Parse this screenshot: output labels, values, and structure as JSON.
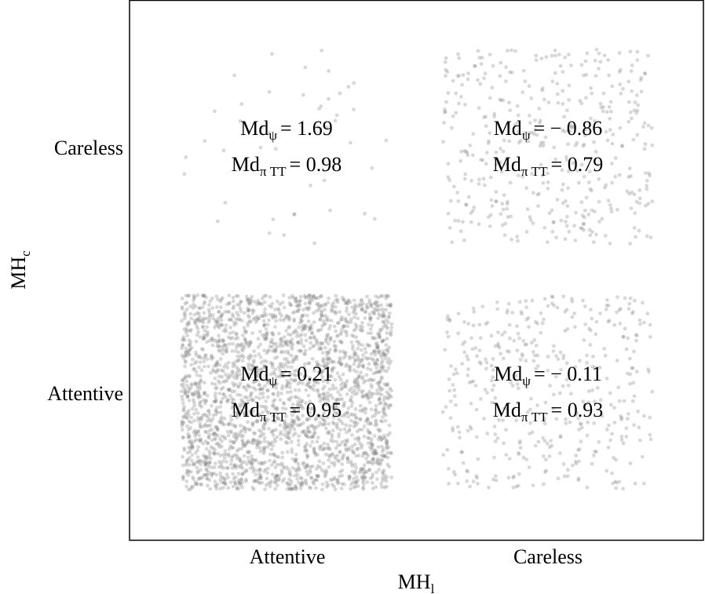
{
  "chart_data": {
    "type": "scatter",
    "subtype": "jittered-categorical",
    "xlabel": {
      "base": "MH",
      "sub": "l"
    },
    "ylabel": {
      "base": "MH",
      "sub": "c"
    },
    "x_categories": [
      "Attentive",
      "Careless"
    ],
    "y_categories": [
      "Attentive",
      "Careless"
    ],
    "point_color": "#7f7f7f",
    "grid": false,
    "cells": [
      {
        "x": "Attentive",
        "y": "Careless",
        "n_points_approx": 45,
        "stat1": {
          "base": "Md",
          "sub": "ψ",
          "value": "= 1.69"
        },
        "stat2": {
          "base": "Md",
          "sub": "π TT",
          "value": "= 0.98"
        }
      },
      {
        "x": "Careless",
        "y": "Careless",
        "n_points_approx": 420,
        "stat1": {
          "base": "Md",
          "sub": "ψ",
          "value": "= − 0.86"
        },
        "stat2": {
          "base": "Md",
          "sub": "π TT",
          "value": "= 0.79"
        }
      },
      {
        "x": "Attentive",
        "y": "Attentive",
        "n_points_approx": 2600,
        "stat1": {
          "base": "Md",
          "sub": "ψ",
          "value": "= 0.21"
        },
        "stat2": {
          "base": "Md",
          "sub": "π TT",
          "value": "= 0.95"
        }
      },
      {
        "x": "Careless",
        "y": "Attentive",
        "n_points_approx": 420,
        "stat1": {
          "base": "Md",
          "sub": "ψ",
          "value": "= − 0.11"
        },
        "stat2": {
          "base": "Md",
          "sub": "π TT",
          "value": "= 0.93"
        }
      }
    ]
  }
}
